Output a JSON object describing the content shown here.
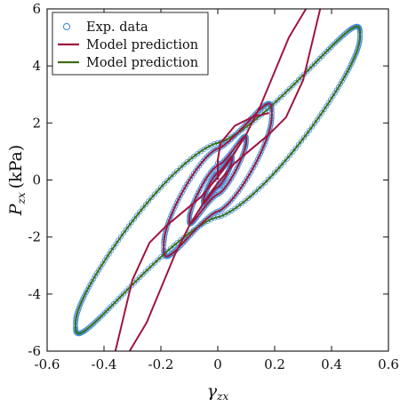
{
  "colors": {
    "experimental": "#3f8fd6",
    "model_red": "#a0153e",
    "model_green": "#3f6e14",
    "axes": "#111111"
  },
  "chart_data": {
    "type": "scatter",
    "xlabel": "γzx",
    "ylabel": "Pzx (kPa)",
    "xlim": [
      -0.6,
      0.6
    ],
    "ylim": [
      -6,
      6
    ],
    "xticks": [
      "-0.6",
      "-0.4",
      "-0.2",
      "0",
      "0.2",
      "0.4",
      "0.6"
    ],
    "yticks": [
      "-6",
      "-4",
      "-2",
      "0",
      "2",
      "4",
      "6"
    ],
    "grid": false,
    "legend_position": "top-left",
    "legend": [
      {
        "label": "Exp. data",
        "marker": "circle",
        "color": "#3f8fd6"
      },
      {
        "label": "Model prediction",
        "marker": "line",
        "color": "#a0153e"
      },
      {
        "label": "Model prediction",
        "marker": "line",
        "color": "#3f6e14"
      }
    ],
    "series": [
      {
        "name": "Exp. data",
        "kind": "hysteresis-loops",
        "style": "markers",
        "loops": [
          {
            "amplitude": 0.5,
            "peak": 5.1,
            "width": 1.3
          },
          {
            "amplitude": 0.19,
            "peak": 2.35,
            "width": 1.1
          },
          {
            "amplitude": 0.1,
            "peak": 1.4,
            "width": 0.5
          },
          {
            "amplitude": 0.05,
            "peak": 0.75,
            "width": 0.25
          }
        ],
        "tail": [
          [
            0.0,
            0.0
          ],
          [
            0.0,
            0.6
          ],
          [
            0.01,
            1.3
          ]
        ]
      },
      {
        "name": "Model prediction",
        "kind": "hysteresis-loops",
        "style": "line",
        "loops": [
          {
            "amplitude": 0.19,
            "peak": 2.35,
            "width": 1.1
          },
          {
            "amplitude": 0.1,
            "peak": 1.4,
            "width": 0.5
          },
          {
            "amplitude": 0.05,
            "peak": 0.75,
            "width": 0.25
          }
        ],
        "curves": [
          [
            [
              -0.36,
              -6.0
            ],
            [
              -0.3,
              -3.5
            ],
            [
              -0.24,
              -2.2
            ],
            [
              -0.18,
              -1.6
            ],
            [
              -0.12,
              -1.1
            ],
            [
              -0.06,
              -0.6
            ],
            [
              0.0,
              0.1
            ],
            [
              0.05,
              0.8
            ],
            [
              0.1,
              1.6
            ],
            [
              0.15,
              2.6
            ],
            [
              0.2,
              3.8
            ],
            [
              0.25,
              5.0
            ],
            [
              0.31,
              6.0
            ]
          ],
          [
            [
              -0.31,
              -6.0
            ],
            [
              -0.25,
              -5.0
            ],
            [
              -0.2,
              -3.8
            ],
            [
              -0.15,
              -2.6
            ],
            [
              -0.1,
              -1.6
            ],
            [
              -0.05,
              -0.8
            ],
            [
              0.0,
              -0.1
            ],
            [
              0.06,
              0.6
            ],
            [
              0.12,
              1.1
            ],
            [
              0.18,
              1.6
            ],
            [
              0.24,
              2.2
            ],
            [
              0.3,
              3.5
            ],
            [
              0.36,
              6.0
            ]
          ],
          [
            [
              0.0,
              0.0
            ],
            [
              0.0,
              0.7
            ],
            [
              0.01,
              1.3
            ],
            [
              0.06,
              1.9
            ],
            [
              0.12,
              2.2
            ],
            [
              0.18,
              2.35
            ]
          ]
        ]
      },
      {
        "name": "Model prediction",
        "kind": "hysteresis-loops",
        "style": "line",
        "loops": [
          {
            "amplitude": 0.5,
            "peak": 5.1,
            "width": 1.3
          }
        ]
      }
    ]
  }
}
